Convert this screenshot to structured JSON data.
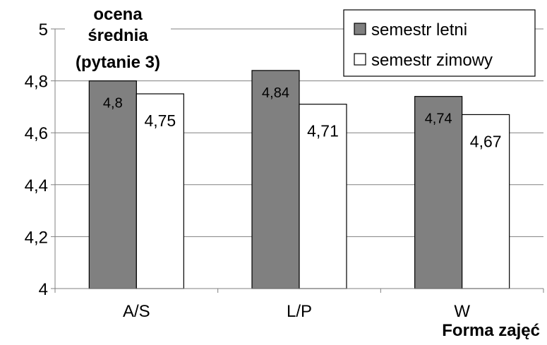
{
  "chart_data": {
    "type": "bar",
    "title": "ocena\nśrednia\n(pytanie 3)",
    "xlabel": "Forma zajęć",
    "ylabel": "",
    "categories": [
      "A/S",
      "L/P",
      "W"
    ],
    "ylim": [
      4,
      5
    ],
    "yticks": [
      4,
      4.2,
      4.4,
      4.6,
      4.8,
      5
    ],
    "ytick_labels": [
      "4",
      "4,2",
      "4,4",
      "4,6",
      "4,8",
      "5"
    ],
    "grid": true,
    "legend_position": "top-right",
    "series": [
      {
        "name": "semestr letni",
        "color": "#808080",
        "values": [
          4.8,
          4.84,
          4.74
        ],
        "labels": [
          "4,8",
          "4,84",
          "4,74"
        ]
      },
      {
        "name": "semestr zimowy",
        "color": "#ffffff",
        "values": [
          4.75,
          4.71,
          4.67
        ],
        "labels": [
          "4,75",
          "4,71",
          "4,67"
        ]
      }
    ]
  }
}
